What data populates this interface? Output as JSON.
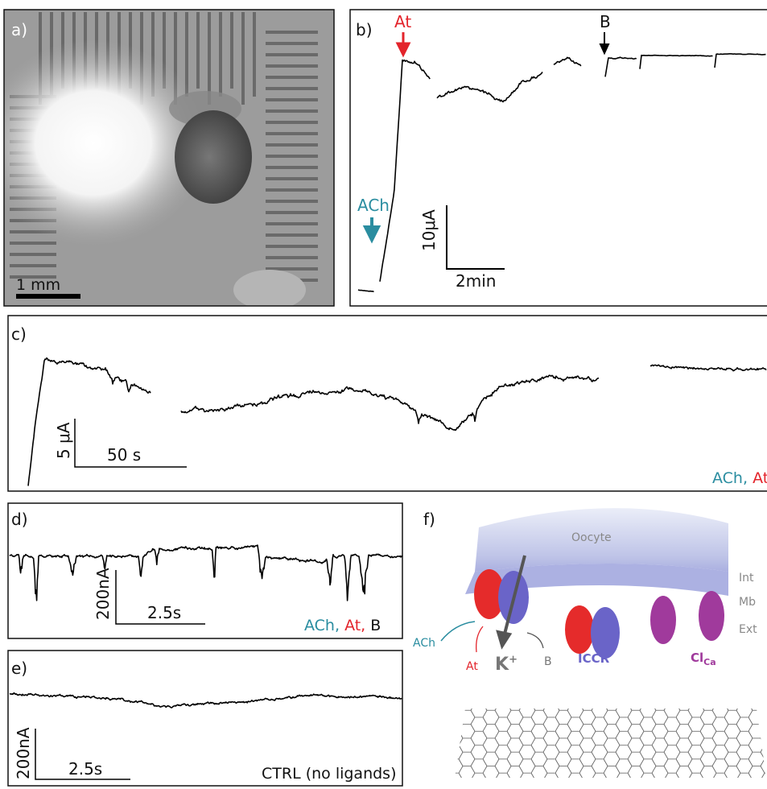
{
  "panels": {
    "a": {
      "label": "a)",
      "scale_bar": "1 mm"
    },
    "b": {
      "label": "b)",
      "markers": [
        "ACh",
        "At",
        "B"
      ],
      "scale_y": "10μA",
      "scale_x": "2min"
    },
    "c": {
      "label": "c)",
      "scale_y": "5 μA",
      "scale_x": "50 s",
      "ligands": [
        "ACh,",
        "At"
      ]
    },
    "d": {
      "label": "d)",
      "scale_y": "200nA",
      "scale_x": "2.5s",
      "ligands": [
        "ACh,",
        "At,",
        "B"
      ]
    },
    "e": {
      "label": "e)",
      "scale_y": "200nA",
      "scale_x": "2.5s",
      "condition": "CTRL (no ligands)"
    },
    "f": {
      "label": "f)",
      "oocyte": "Oocyte",
      "layers": [
        "Int",
        "Mb",
        "Ext"
      ],
      "ach": "ACh",
      "at": "At",
      "b": "B",
      "ion": "K",
      "ion_charge": "+",
      "iccr": "ICCR",
      "clca": "Cl",
      "clca_sub": "Ca"
    }
  }
}
